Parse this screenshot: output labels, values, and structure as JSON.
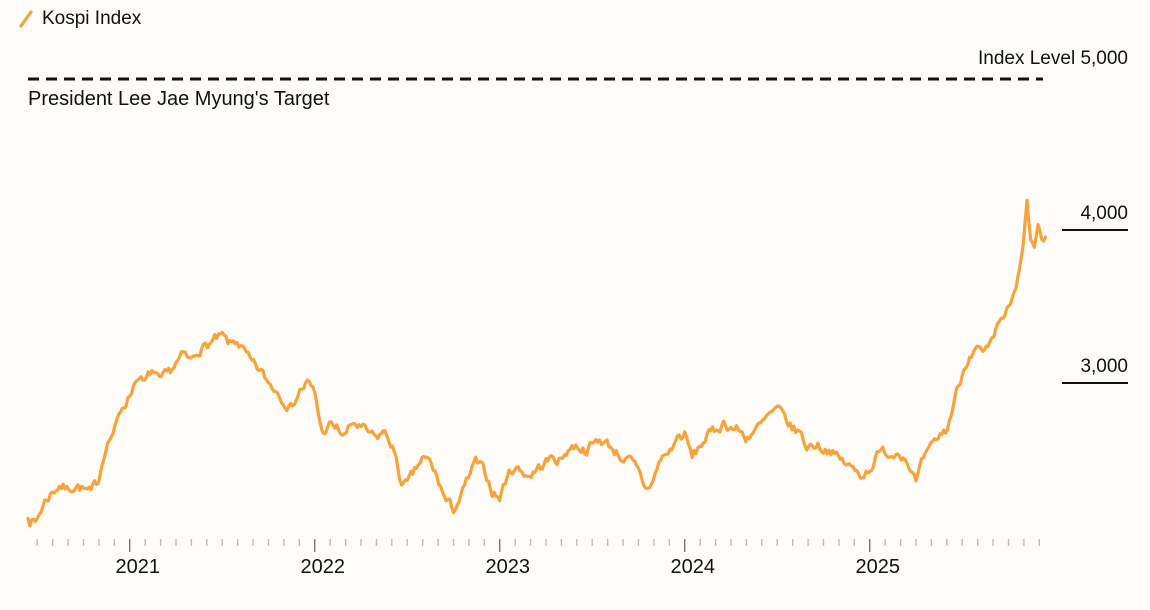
{
  "legend": {
    "label": "Kospi Index",
    "marker_color": "#F7A33C",
    "marker_icon": "slash-icon"
  },
  "annotations": {
    "index_level_label": "Index Level 5,000",
    "target_label": "President Lee Jae Myung's Target"
  },
  "y_axis": {
    "labels": [
      {
        "value": 4000,
        "text": "4,000"
      },
      {
        "value": 3000,
        "text": "3,000"
      }
    ]
  },
  "x_axis": {
    "years": [
      "2021",
      "2022",
      "2023",
      "2024",
      "2025"
    ]
  },
  "chart_data": {
    "type": "line",
    "title": "Kospi Index",
    "xlabel": "",
    "ylabel": "Index Level",
    "x_range": [
      2020.45,
      2025.95
    ],
    "y_axis_refs": [
      5000,
      4000,
      3000
    ],
    "grid": false,
    "legend_position": "top-left",
    "target_line": {
      "value": 5000,
      "label": "President Lee Jae Myung's Target",
      "style": "dashed",
      "color": "#111111"
    },
    "series": [
      {
        "name": "Kospi Index",
        "color": "#F7A33C",
        "points": [
          [
            2020.45,
            2110
          ],
          [
            2020.49,
            2080
          ],
          [
            2020.54,
            2220
          ],
          [
            2020.58,
            2280
          ],
          [
            2020.62,
            2330
          ],
          [
            2020.66,
            2300
          ],
          [
            2020.71,
            2330
          ],
          [
            2020.75,
            2300
          ],
          [
            2020.79,
            2270
          ],
          [
            2020.83,
            2360
          ],
          [
            2020.87,
            2590
          ],
          [
            2020.92,
            2700
          ],
          [
            2020.96,
            2840
          ],
          [
            2021.0,
            2920
          ],
          [
            2021.04,
            3050
          ],
          [
            2021.08,
            2990
          ],
          [
            2021.12,
            3080
          ],
          [
            2021.16,
            3000
          ],
          [
            2021.21,
            3060
          ],
          [
            2021.25,
            3130
          ],
          [
            2021.29,
            3180
          ],
          [
            2021.33,
            3140
          ],
          [
            2021.37,
            3220
          ],
          [
            2021.42,
            3250
          ],
          [
            2021.46,
            3280
          ],
          [
            2021.5,
            3300
          ],
          [
            2021.54,
            3250
          ],
          [
            2021.58,
            3280
          ],
          [
            2021.62,
            3200
          ],
          [
            2021.66,
            3120
          ],
          [
            2021.71,
            3070
          ],
          [
            2021.75,
            3000
          ],
          [
            2021.79,
            2960
          ],
          [
            2021.83,
            2900
          ],
          [
            2021.87,
            2840
          ],
          [
            2021.92,
            2950
          ],
          [
            2021.96,
            3000
          ],
          [
            2022.0,
            2930
          ],
          [
            2022.04,
            2670
          ],
          [
            2022.08,
            2720
          ],
          [
            2022.12,
            2700
          ],
          [
            2022.16,
            2650
          ],
          [
            2022.21,
            2740
          ],
          [
            2022.25,
            2700
          ],
          [
            2022.29,
            2670
          ],
          [
            2022.33,
            2630
          ],
          [
            2022.37,
            2680
          ],
          [
            2022.42,
            2590
          ],
          [
            2022.46,
            2370
          ],
          [
            2022.5,
            2330
          ],
          [
            2022.54,
            2410
          ],
          [
            2022.58,
            2500
          ],
          [
            2022.62,
            2480
          ],
          [
            2022.66,
            2380
          ],
          [
            2022.71,
            2220
          ],
          [
            2022.75,
            2170
          ],
          [
            2022.79,
            2250
          ],
          [
            2022.83,
            2370
          ],
          [
            2022.87,
            2480
          ],
          [
            2022.92,
            2410
          ],
          [
            2022.96,
            2290
          ],
          [
            2023.0,
            2240
          ],
          [
            2023.04,
            2390
          ],
          [
            2023.08,
            2450
          ],
          [
            2023.12,
            2420
          ],
          [
            2023.16,
            2390
          ],
          [
            2023.21,
            2440
          ],
          [
            2023.25,
            2480
          ],
          [
            2023.29,
            2510
          ],
          [
            2023.33,
            2490
          ],
          [
            2023.37,
            2570
          ],
          [
            2023.42,
            2590
          ],
          [
            2023.46,
            2560
          ],
          [
            2023.5,
            2590
          ],
          [
            2023.54,
            2630
          ],
          [
            2023.58,
            2600
          ],
          [
            2023.62,
            2560
          ],
          [
            2023.66,
            2510
          ],
          [
            2023.71,
            2480
          ],
          [
            2023.75,
            2410
          ],
          [
            2023.79,
            2300
          ],
          [
            2023.83,
            2360
          ],
          [
            2023.87,
            2500
          ],
          [
            2023.92,
            2550
          ],
          [
            2023.96,
            2640
          ],
          [
            2024.0,
            2660
          ],
          [
            2024.04,
            2510
          ],
          [
            2024.08,
            2580
          ],
          [
            2024.12,
            2650
          ],
          [
            2024.16,
            2680
          ],
          [
            2024.21,
            2740
          ],
          [
            2024.25,
            2710
          ],
          [
            2024.29,
            2690
          ],
          [
            2024.33,
            2640
          ],
          [
            2024.37,
            2680
          ],
          [
            2024.42,
            2730
          ],
          [
            2024.46,
            2790
          ],
          [
            2024.5,
            2820
          ],
          [
            2024.54,
            2770
          ],
          [
            2024.58,
            2700
          ],
          [
            2024.62,
            2680
          ],
          [
            2024.66,
            2580
          ],
          [
            2024.71,
            2600
          ],
          [
            2024.75,
            2570
          ],
          [
            2024.79,
            2560
          ],
          [
            2024.83,
            2500
          ],
          [
            2024.87,
            2470
          ],
          [
            2024.92,
            2420
          ],
          [
            2024.96,
            2400
          ],
          [
            2025.0,
            2440
          ],
          [
            2025.04,
            2520
          ],
          [
            2025.08,
            2550
          ],
          [
            2025.12,
            2530
          ],
          [
            2025.16,
            2560
          ],
          [
            2025.21,
            2480
          ],
          [
            2025.25,
            2340
          ],
          [
            2025.29,
            2490
          ],
          [
            2025.33,
            2560
          ],
          [
            2025.37,
            2640
          ],
          [
            2025.42,
            2700
          ],
          [
            2025.46,
            2900
          ],
          [
            2025.5,
            3060
          ],
          [
            2025.54,
            3200
          ],
          [
            2025.58,
            3220
          ],
          [
            2025.62,
            3180
          ],
          [
            2025.66,
            3250
          ],
          [
            2025.71,
            3420
          ],
          [
            2025.75,
            3480
          ],
          [
            2025.79,
            3600
          ],
          [
            2025.82,
            3800
          ],
          [
            2025.85,
            4170
          ],
          [
            2025.87,
            3950
          ],
          [
            2025.89,
            3870
          ],
          [
            2025.91,
            4040
          ],
          [
            2025.93,
            3900
          ],
          [
            2025.95,
            3960
          ]
        ]
      }
    ]
  }
}
